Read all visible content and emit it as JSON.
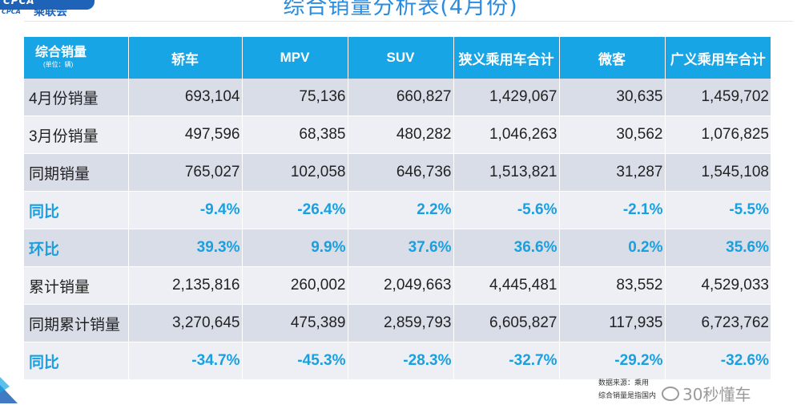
{
  "logo": {
    "mark": "CPCA",
    "sub": "CPCA",
    "name": "乘联会"
  },
  "title": "综合销量分析表(4月份)",
  "table": {
    "header_title": "综合销量",
    "header_unit": "(单位：辆)",
    "columns": [
      "轿车",
      "MPV",
      "SUV",
      "狭义乘用车合计",
      "微客",
      "广义乘用车合计"
    ],
    "rows": [
      {
        "label": "4月份销量",
        "values": [
          "693,104",
          "75,136",
          "660,827",
          "1,429,067",
          "30,635",
          "1,459,702"
        ]
      },
      {
        "label": "3月份销量",
        "values": [
          "497,596",
          "68,385",
          "480,282",
          "1,046,263",
          "30,562",
          "1,076,825"
        ]
      },
      {
        "label": "同期销量",
        "values": [
          "765,027",
          "102,058",
          "646,736",
          "1,513,821",
          "31,287",
          "1,545,108"
        ]
      },
      {
        "label": "同比",
        "values": [
          "-9.4%",
          "-26.4%",
          "2.2%",
          "-5.6%",
          "-2.1%",
          "-5.5%"
        ]
      },
      {
        "label": "环比",
        "values": [
          "39.3%",
          "9.9%",
          "37.6%",
          "36.6%",
          "0.2%",
          "35.6%"
        ]
      },
      {
        "label": "累计销量",
        "values": [
          "2,135,816",
          "260,002",
          "2,049,663",
          "4,445,481",
          "83,552",
          "4,529,033"
        ]
      },
      {
        "label": "同期累计销量",
        "values": [
          "3,270,645",
          "475,389",
          "2,859,793",
          "6,605,827",
          "117,935",
          "6,723,762"
        ]
      },
      {
        "label": "同比",
        "values": [
          "-34.7%",
          "-45.3%",
          "-28.3%",
          "-32.7%",
          "-29.2%",
          "-32.6%"
        ]
      }
    ]
  },
  "footnote": {
    "line1": "数据来源：乘用",
    "line2": "综合销量是指国内"
  },
  "watermark": {
    "icon": "wechat-icon",
    "text": "30秒懂车"
  },
  "colors": {
    "header_bg": "#17a5e6",
    "pct_text": "#18a0e0",
    "row_dark": "#d9dde8",
    "row_light": "#edeff4",
    "title": "#2a8ce0"
  }
}
